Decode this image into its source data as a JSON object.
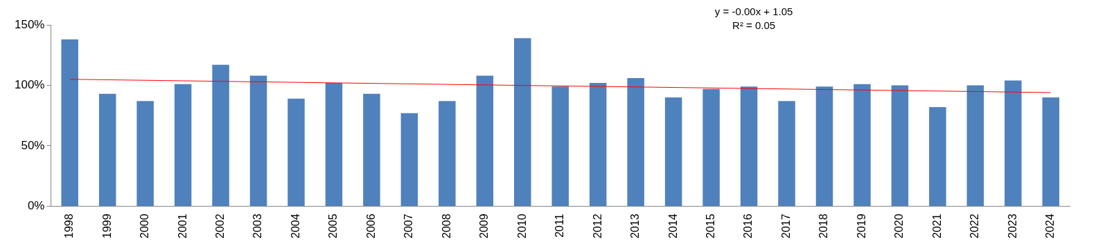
{
  "chart_data": {
    "type": "bar",
    "categories": [
      "1998",
      "1999",
      "2000",
      "2001",
      "2002",
      "2003",
      "2004",
      "2005",
      "2006",
      "2007",
      "2008",
      "2009",
      "2010",
      "2011",
      "2012",
      "2013",
      "2014",
      "2015",
      "2016",
      "2017",
      "2018",
      "2019",
      "2020",
      "2021",
      "2022",
      "2023",
      "2024"
    ],
    "series": [
      {
        "color": "#4f81bd",
        "values": [
          138,
          93,
          87,
          101,
          117,
          108,
          89,
          102,
          93,
          77,
          87,
          108,
          139,
          99,
          102,
          106,
          90,
          97,
          99,
          87,
          99,
          101,
          100,
          82,
          100,
          104,
          90
        ]
      },
      {
        "type": "line",
        "color": "#ff0000",
        "values": [
          105,
          null,
          null,
          null,
          null,
          null,
          null,
          null,
          null,
          null,
          null,
          null,
          null,
          null,
          null,
          null,
          null,
          null,
          null,
          null,
          null,
          null,
          null,
          null,
          null,
          null,
          94
        ]
      }
    ],
    "ylim": [
      0,
      150
    ],
    "yticks": [
      {
        "value": 0,
        "label": "0%"
      },
      {
        "value": 50,
        "label": "50%"
      },
      {
        "value": 100,
        "label": "100%"
      },
      {
        "value": 150,
        "label": "150%"
      }
    ],
    "grid": false,
    "legend": false,
    "marker": "none",
    "annotations": [
      "y = -0.00x + 1.05",
      "R² = 0.05"
    ]
  }
}
